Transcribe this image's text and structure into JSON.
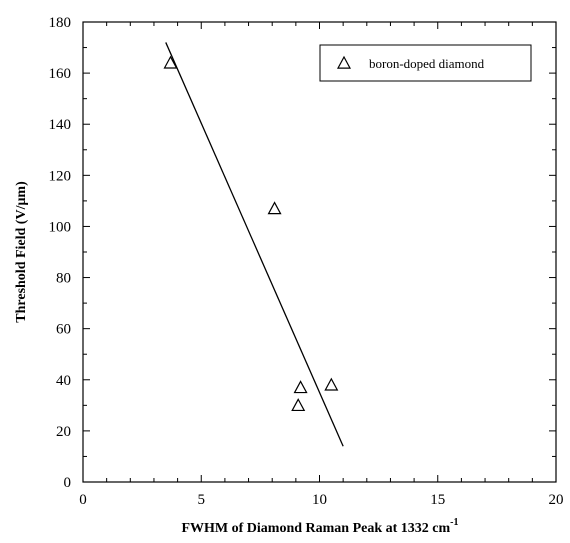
{
  "chart_data": {
    "type": "scatter",
    "xlabel": "FWHM of Diamond Raman Peak at 1332 cm",
    "xlabel_sup": "-1",
    "ylabel": "Threshold Field (V/μm)",
    "xlim": [
      0,
      20
    ],
    "ylim": [
      0,
      180
    ],
    "x_ticks": [
      0,
      5,
      10,
      15,
      20
    ],
    "y_ticks": [
      0,
      20,
      40,
      60,
      80,
      100,
      120,
      140,
      160,
      180
    ],
    "legend_position": "top-right",
    "grid": false,
    "series": [
      {
        "name": "boron-doped diamond",
        "marker": "open-triangle",
        "points": [
          {
            "x": 3.7,
            "y": 164
          },
          {
            "x": 8.1,
            "y": 107
          },
          {
            "x": 9.2,
            "y": 37
          },
          {
            "x": 9.1,
            "y": 30
          },
          {
            "x": 10.5,
            "y": 38
          }
        ]
      }
    ],
    "fit_line": {
      "x": [
        3.5,
        11.0
      ],
      "y": [
        172,
        14
      ]
    }
  }
}
